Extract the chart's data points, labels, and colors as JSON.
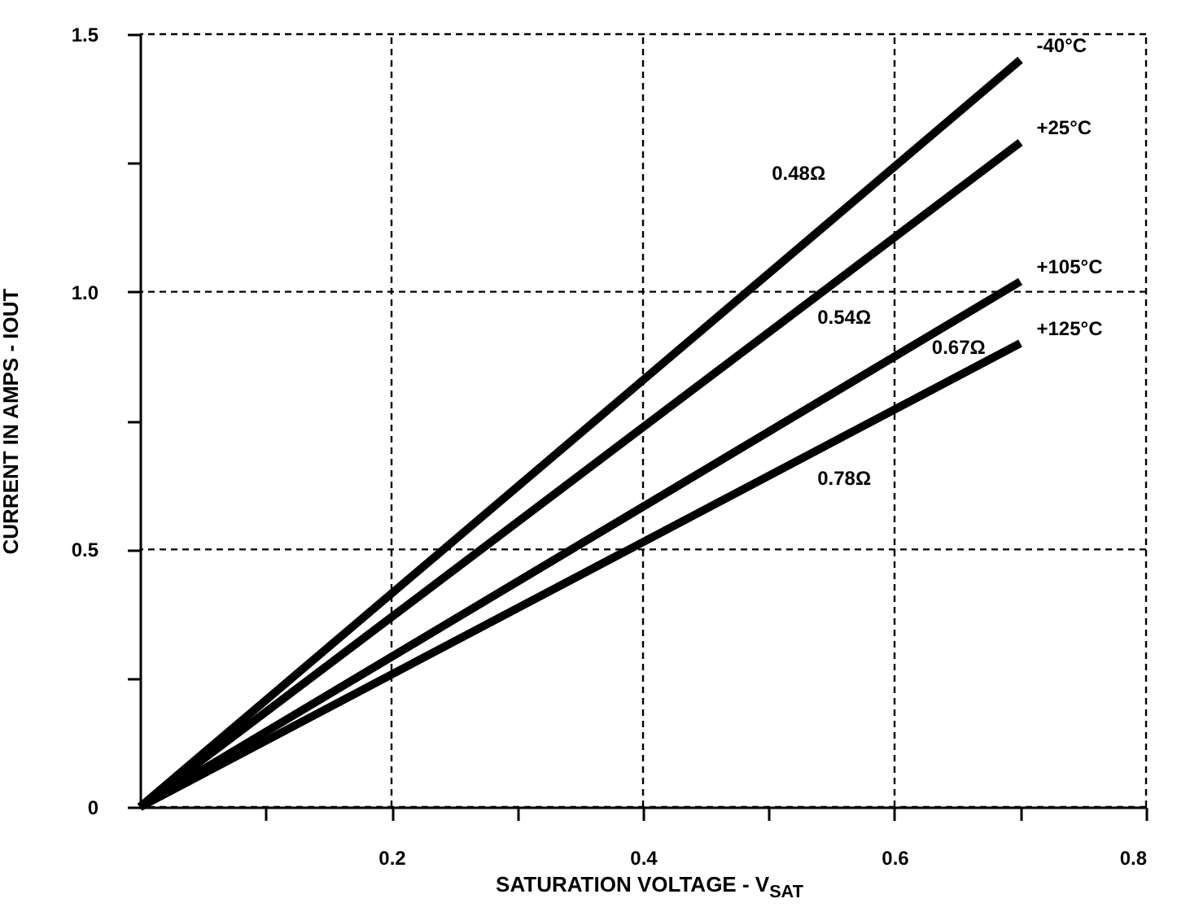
{
  "chart_data": {
    "type": "line",
    "xlabel": "SATURATION VOLTAGE - V$_{SAT}$",
    "ylabel": "CURRENT IN AMPS - IOUT",
    "x": [
      0,
      0.7
    ],
    "series": [
      {
        "name": "-40°C",
        "color": "#000000",
        "values": [
          0,
          1.45
        ]
      },
      {
        "name": "+25°C",
        "color": "#000000",
        "values": [
          0,
          1.29
        ]
      },
      {
        "name": "+105°C",
        "color": "#000000",
        "values": [
          0,
          1.02
        ]
      },
      {
        "name": "+125°C",
        "color": "#000000",
        "values": [
          0,
          0.9
        ]
      }
    ],
    "annotations": [
      "0.48Ω",
      "0.54Ω",
      "0.67Ω",
      "0.78Ω"
    ],
    "xlim": [
      0,
      0.8
    ],
    "xticks": [
      {
        "value": 0.1,
        "label": null
      },
      0.2,
      {
        "value": 0.3,
        "label": null
      },
      0.4,
      {
        "value": 0.5,
        "label": null
      },
      0.6,
      {
        "value": 0.7,
        "label": null
      },
      0.8
    ],
    "ylim": [
      0,
      1.5
    ],
    "yticks": [
      0,
      {
        "value": 0.25,
        "label": null
      },
      0.5,
      {
        "value": 0.75,
        "label": null
      },
      {
        "value": 1,
        "label": "1.0"
      },
      {
        "value": 1.25,
        "label": null
      },
      1.5
    ],
    "grid": true,
    "legend": false,
    "marker": "none",
    "line_style": "solid"
  }
}
